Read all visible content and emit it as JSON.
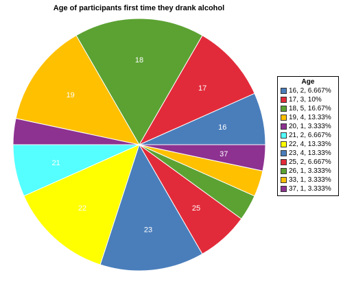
{
  "chart_data": {
    "type": "pie",
    "title": "Age of participants first time they drank alcohol",
    "legend_title": "Age",
    "legend_position": "right",
    "start_angle_deg": 0,
    "direction": "counterclockwise",
    "slices": [
      {
        "label": "16",
        "value": 2,
        "legend": "16, 2, 6.667%",
        "color": "#4a7ebb"
      },
      {
        "label": "17",
        "value": 3,
        "legend": "17, 3, 10%",
        "color": "#e22b3a"
      },
      {
        "label": "18",
        "value": 5,
        "legend": "18, 5, 16.67%",
        "color": "#5ca233"
      },
      {
        "label": "19",
        "value": 4,
        "legend": "19, 4, 13.33%",
        "color": "#ffc000"
      },
      {
        "label": "",
        "value": 1,
        "legend": "20, 1, 3.333%",
        "color": "#8d3290"
      },
      {
        "label": "21",
        "value": 2,
        "legend": "21, 2, 6.667%",
        "color": "#55ffff"
      },
      {
        "label": "22",
        "value": 4,
        "legend": "22, 4, 13.33%",
        "color": "#ffff00"
      },
      {
        "label": "23",
        "value": 4,
        "legend": "23, 4, 13.33%",
        "color": "#4a7ebb"
      },
      {
        "label": "25",
        "value": 2,
        "legend": "25, 2, 6.667%",
        "color": "#e22b3a"
      },
      {
        "label": "",
        "value": 1,
        "legend": "26, 1, 3.333%",
        "color": "#5ca233"
      },
      {
        "label": "",
        "value": 1,
        "legend": "33, 1, 3.333%",
        "color": "#ffc000"
      },
      {
        "label": "37",
        "value": 1,
        "legend": "37, 1, 3.333%",
        "color": "#8d3290"
      }
    ]
  }
}
